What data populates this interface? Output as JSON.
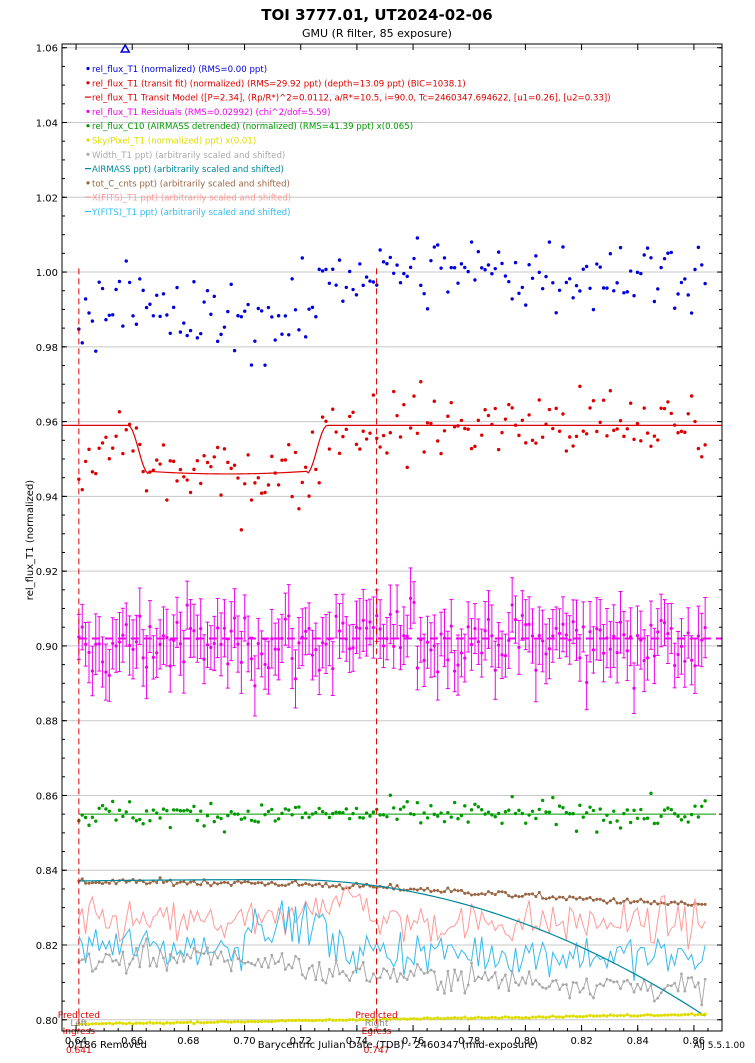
{
  "chart_data": {
    "type": "scatter",
    "title": "TOI 3777.01, UT2024-02-06",
    "subtitle": "GMU (R filter, 85 exposure)",
    "xlabel": "Barycentric Julian Date (TDB) - 2460347 (mid-exposure)",
    "ylabel": "rel_flux_T1 (normalized)",
    "xlim": [
      0.635,
      0.87
    ],
    "ylim": [
      0.797,
      1.061
    ],
    "xticks": [
      "0.64",
      "0.66",
      "0.68",
      "0.70",
      "0.72",
      "0.74",
      "0.76",
      "0.78",
      "0.80",
      "0.82",
      "0.84",
      "0.86"
    ],
    "yticks": [
      "0.80",
      "0.82",
      "0.84",
      "0.86",
      "0.88",
      "0.90",
      "0.92",
      "0.94",
      "0.96",
      "0.98",
      "1.00",
      "1.02",
      "1.04",
      "1.06"
    ],
    "grid": "horizontal",
    "legend": [
      {
        "text": "rel_flux_T1 (normalized) (RMS=0.00 ppt)",
        "color": "#0000dd",
        "marker": "dot"
      },
      {
        "text": "rel_flux_T1 (transit fit) (normalized) (RMS=29.92 ppt) (depth=13.09 ppt) (BIC=1038.1)",
        "color": "#dd0000",
        "marker": "dot"
      },
      {
        "text": "rel_flux_T1 Transit Model ([P=2.34], (Rp/R*)^2=0.0112, a/R*=10.5, i=90.0, Tc=2460347.694622, [u1=0.26], [u2=0.33])",
        "color": "#dd0000",
        "marker": "line"
      },
      {
        "text": "rel_flux_T1 Residuals (RMS=0.02992) (chi^2/dof=5.59)",
        "color": "#ee00ee",
        "marker": "dot"
      },
      {
        "text": "rel_flux_C10 (AIRMASS detrended) (normalized) (RMS=41.39 ppt) x(0.065)",
        "color": "#009900",
        "marker": "dot"
      },
      {
        "text": "Sky/Pixel_T1 (normalized) ppt) x(0.01)",
        "color": "#dddd00",
        "marker": "dot"
      },
      {
        "text": "Width_T1 ppt) (arbitrarily scaled and shifted)",
        "color": "#aaaaaa",
        "marker": "dot"
      },
      {
        "text": "AIRMASS ppt) (arbitrarily scaled and shifted)",
        "color": "#008899",
        "marker": "line"
      },
      {
        "text": "tot_C_cnts ppt) (arbitrarily scaled and shifted)",
        "color": "#996644",
        "marker": "dot"
      },
      {
        "text": "X(FITS)_T1 ppt) (arbitrarily scaled and shifted)",
        "color": "#ff9999",
        "marker": "line"
      },
      {
        "text": "Y(FITS)_T1 ppt) (arbitrarily scaled and shifted)",
        "color": "#33bbee",
        "marker": "line"
      }
    ],
    "transit_model": {
      "baseline": 0.959,
      "bottom": 0.946,
      "t1": 0.6585,
      "t2": 0.666,
      "t3": 0.722,
      "t4": 0.7295
    },
    "residual_mean": 0.902,
    "c10_level": 0.855,
    "sky_level": 0.8,
    "marker_ingress": {
      "x": 0.641,
      "label1": "Predicted",
      "label2": "Ingress",
      "label3": "Left",
      "value": "0.641"
    },
    "marker_egress": {
      "x": 0.747,
      "label1": "Predicted",
      "label2": "Egress",
      "label3": "Right",
      "value": "0.747"
    },
    "triangle_x": 0.6575,
    "footer_left": "0/186 Removed",
    "footer_right": "AIJ 5.5.1.00",
    "series_summary": {
      "rel_flux_T1": {
        "x_start": 0.641,
        "x_end": 0.864,
        "n": 186
      },
      "rel_flux_T1_transit_fit": {
        "offset_from_normalized": -0.041
      }
    }
  }
}
